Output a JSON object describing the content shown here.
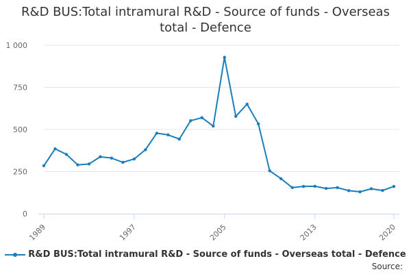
{
  "header": {
    "title_line1": "R&D BUS:Total intramural R&D - Source of funds - Overseas",
    "title_line2": "total - Defence"
  },
  "footer": {
    "source_label": "Source:"
  },
  "chart_data": {
    "type": "line",
    "title": "R&D BUS:Total intramural R&D - Source of funds - Overseas total - Defence",
    "xlabel": "",
    "ylabel": "",
    "x_ticks": [
      "1989",
      "1997",
      "2005",
      "2013",
      "2020"
    ],
    "y_ticks": [
      "0",
      "250",
      "500",
      "750",
      "1 000"
    ],
    "xlim": [
      1989,
      2020
    ],
    "ylim": [
      0,
      1000
    ],
    "grid": true,
    "legend_position": "bottom",
    "color": "#1a7dbb",
    "series": [
      {
        "name": "R&D BUS:Total intramural R&D - Source of funds - Overseas total - Defence",
        "x": [
          1989,
          1990,
          1991,
          1992,
          1993,
          1994,
          1995,
          1996,
          1997,
          1998,
          1999,
          2000,
          2001,
          2002,
          2003,
          2004,
          2005,
          2006,
          2007,
          2008,
          2009,
          2010,
          2011,
          2012,
          2013,
          2014,
          2015,
          2016,
          2017,
          2018,
          2019,
          2020
        ],
        "values": [
          285,
          385,
          352,
          290,
          295,
          338,
          330,
          305,
          325,
          380,
          478,
          468,
          443,
          552,
          570,
          520,
          928,
          578,
          650,
          533,
          255,
          208,
          155,
          162,
          163,
          150,
          155,
          137,
          130,
          148,
          138,
          162
        ]
      }
    ]
  }
}
